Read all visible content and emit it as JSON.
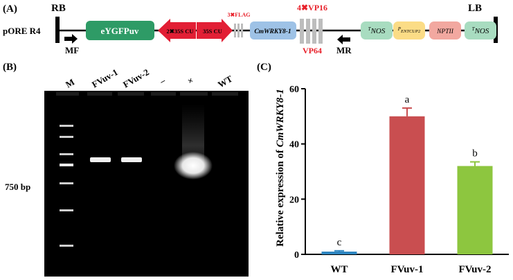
{
  "panels": {
    "a": "(A)",
    "b": "(B)",
    "c": "(C)"
  },
  "construct": {
    "vector": "pORE R4",
    "rb": "RB",
    "lb": "LB",
    "mf": "MF",
    "mr": "MR",
    "eygfp": "eYGFPuv",
    "promoter_2x35s": "2✖35S CU",
    "promoter_35s": "35S CU",
    "flag": "3✖FLAG",
    "gene": "CmWRKY8-1",
    "vp16": "4✖VP16",
    "vp64": "VP64",
    "tnos1": "NOS",
    "tnos1_sup": "T",
    "pentcup": "ENTCUP2",
    "pentcup_sup": "P",
    "nptii": "NPTII",
    "tnos2": "NOS",
    "tnos2_sup": "T",
    "colors": {
      "eygfp": "#2e9b66",
      "promoter": "#e21f35",
      "gene": "#9ec2e6",
      "vp": "#bdbdbd",
      "tnos": "#a8dcc0",
      "pentcup": "#fbdc86",
      "nptii": "#f2a8a0"
    }
  },
  "gel": {
    "lanes": [
      "M",
      "FVuv-1",
      "FVuv-2",
      "–",
      "×",
      "WT"
    ],
    "marker_label": "750 bp"
  },
  "chart_data": {
    "type": "bar",
    "ylabel_prefix": "Relative expression of ",
    "ylabel_gene": "CmWRKY8-1",
    "categories": [
      "WT",
      "FVuv-1",
      "FVuv-2"
    ],
    "values": [
      1,
      50,
      32
    ],
    "errors": [
      0.3,
      3,
      1.5
    ],
    "significance": [
      "c",
      "a",
      "b"
    ],
    "colors": [
      "#2e86c1",
      "#c94e50",
      "#8dc63f"
    ],
    "ylim": [
      0,
      60
    ],
    "yticks": [
      0,
      20,
      40,
      60
    ]
  }
}
